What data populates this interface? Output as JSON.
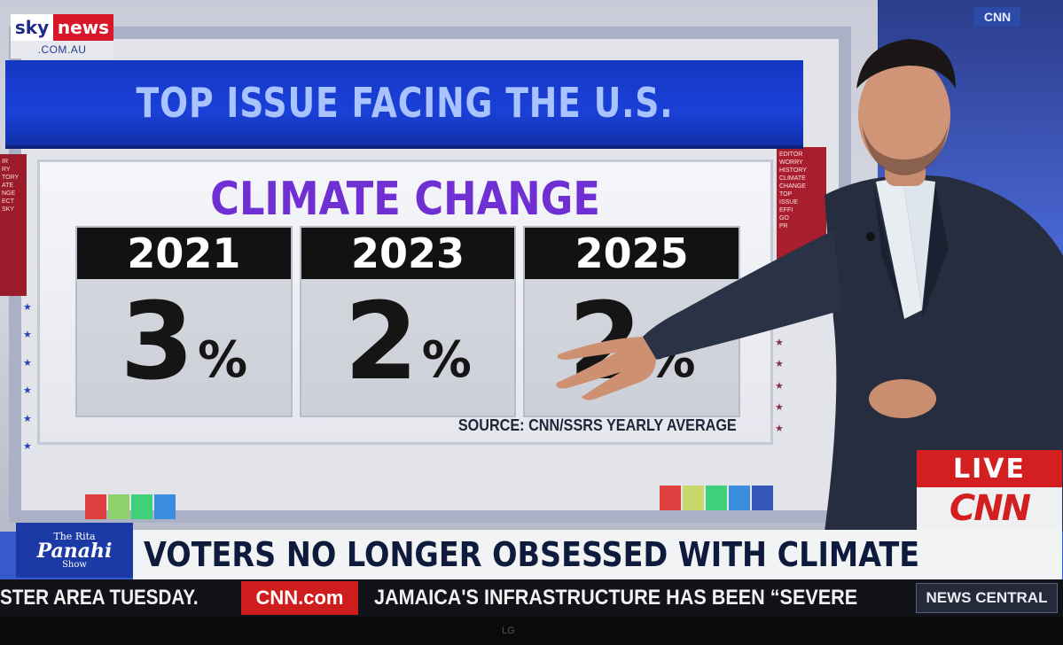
{
  "broadcaster": {
    "sky_word": "sky",
    "news_word": "news",
    "domain": ".COM.AU",
    "corner_bug": "CNN"
  },
  "studio_screen": {
    "headline": "TOP ISSUE FACING THE U.S.",
    "panel_title": "CLIMATE CHANGE",
    "cards": [
      {
        "year": "2021",
        "value": "3",
        "unit": "%"
      },
      {
        "year": "2023",
        "value": "2",
        "unit": "%"
      },
      {
        "year": "2025",
        "value": "2",
        "unit": "%"
      }
    ],
    "source": "SOURCE: CNN/SSRS YEARLY AVERAGE",
    "left_tiles": "IR\nRY\nTORY\nATE\nNGE\nECT\nSKY",
    "right_tiles": "EDITOR\nWORRY\nHISTORY\nCLIMATE\nCHANGE\nTOP\nISSUE\nEFFI\nGO\nPR"
  },
  "lower_third": {
    "live_label": "LIVE",
    "network_logo": "CNN",
    "show_logo": {
      "line1": "The Rita",
      "line2": "Panahi",
      "line3": "Show"
    },
    "banner": "VOTERS NO LONGER OBSESSED WITH CLIMATE"
  },
  "ticker": {
    "left_text": "STER AREA TUESDAY.",
    "cnn_com": "CNN.com",
    "right_text": "JAMAICA'S INFRASTRUCTURE HAS BEEN “SEVERE",
    "news_central": "NEWS CENTRAL"
  },
  "tv_brand": "LG",
  "colors": {
    "headline_blue": "#1a40d8",
    "title_purple": "#6f2fd2",
    "live_red": "#d31f1f"
  }
}
